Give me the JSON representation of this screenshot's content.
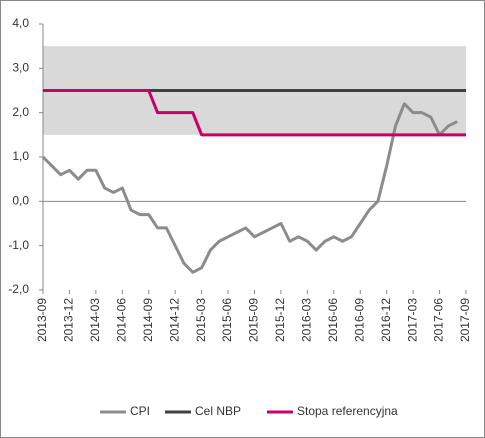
{
  "chart_data": {
    "type": "line",
    "categories": [
      "2013-09",
      null,
      null,
      "2013-12",
      null,
      null,
      "2014-03",
      null,
      null,
      "2014-06",
      null,
      null,
      "2014-09",
      null,
      null,
      "2014-12",
      null,
      null,
      "2015-03",
      null,
      null,
      "2015-06",
      null,
      null,
      "2015-09",
      null,
      null,
      "2015-12",
      null,
      null,
      "2016-03",
      null,
      null,
      "2016-06",
      null,
      null,
      "2016-09",
      null,
      null,
      "2016-12",
      null,
      null,
      "2017-03",
      null,
      null,
      "2017-06",
      null,
      null,
      "2017-09"
    ],
    "series": [
      {
        "name": "CPI",
        "color": "#8c8c8c",
        "values": [
          1.0,
          0.8,
          0.6,
          0.7,
          0.5,
          0.7,
          0.7,
          0.3,
          0.2,
          0.3,
          -0.2,
          -0.3,
          -0.3,
          -0.6,
          -0.6,
          -1.0,
          -1.4,
          -1.6,
          -1.5,
          -1.1,
          -0.9,
          -0.8,
          -0.7,
          -0.6,
          -0.8,
          -0.7,
          -0.6,
          -0.5,
          -0.9,
          -0.8,
          -0.9,
          -1.1,
          -0.9,
          -0.8,
          -0.9,
          -0.8,
          -0.5,
          -0.2,
          0.0,
          0.8,
          1.7,
          2.2,
          2.0,
          2.0,
          1.9,
          1.5,
          1.7,
          1.8,
          null
        ]
      },
      {
        "name": "Cel NBP",
        "color": "#404040",
        "values": [
          2.5,
          2.5,
          2.5,
          2.5,
          2.5,
          2.5,
          2.5,
          2.5,
          2.5,
          2.5,
          2.5,
          2.5,
          2.5,
          2.5,
          2.5,
          2.5,
          2.5,
          2.5,
          2.5,
          2.5,
          2.5,
          2.5,
          2.5,
          2.5,
          2.5,
          2.5,
          2.5,
          2.5,
          2.5,
          2.5,
          2.5,
          2.5,
          2.5,
          2.5,
          2.5,
          2.5,
          2.5,
          2.5,
          2.5,
          2.5,
          2.5,
          2.5,
          2.5,
          2.5,
          2.5,
          2.5,
          2.5,
          2.5,
          2.5
        ]
      },
      {
        "name": "Stopa referencyjna",
        "color": "#c8006e",
        "values": [
          2.5,
          2.5,
          2.5,
          2.5,
          2.5,
          2.5,
          2.5,
          2.5,
          2.5,
          2.5,
          2.5,
          2.5,
          2.5,
          2.0,
          2.0,
          2.0,
          2.0,
          2.0,
          1.5,
          1.5,
          1.5,
          1.5,
          1.5,
          1.5,
          1.5,
          1.5,
          1.5,
          1.5,
          1.5,
          1.5,
          1.5,
          1.5,
          1.5,
          1.5,
          1.5,
          1.5,
          1.5,
          1.5,
          1.5,
          1.5,
          1.5,
          1.5,
          1.5,
          1.5,
          1.5,
          1.5,
          1.5,
          1.5,
          1.5
        ]
      }
    ],
    "band": {
      "range": [
        1.5,
        3.5
      ],
      "color": "#d9d9d9"
    },
    "ylim": [
      -2,
      4
    ],
    "yticks": [
      {
        "value": -2,
        "label": "-2,0"
      },
      {
        "value": -1,
        "label": "-1,0"
      },
      {
        "value": 0,
        "label": "0,0"
      },
      {
        "value": 1,
        "label": "1,0"
      },
      {
        "value": 2,
        "label": "2,0"
      },
      {
        "value": 3,
        "label": "3,0"
      },
      {
        "value": 4,
        "label": "4,0"
      }
    ],
    "legend": "bottom"
  }
}
